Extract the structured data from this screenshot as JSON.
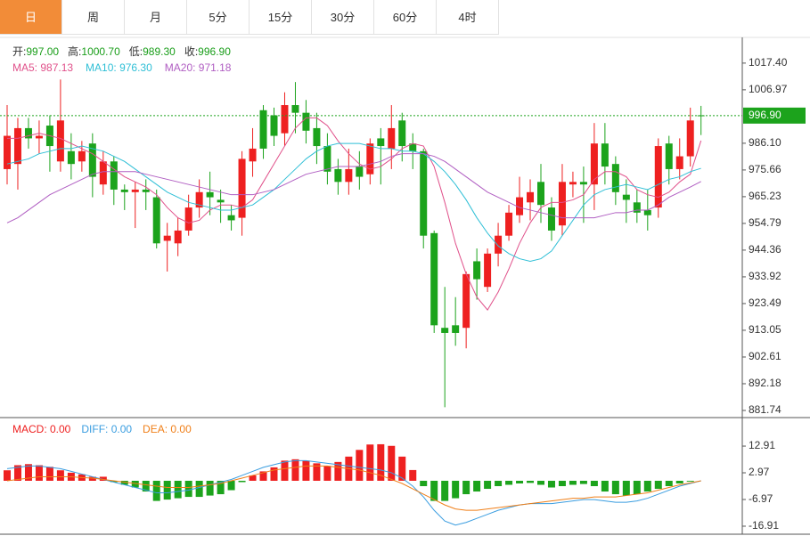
{
  "tabs": [
    "日",
    "周",
    "月",
    "5分",
    "15分",
    "30分",
    "60分",
    "4时"
  ],
  "chart_data": [
    {
      "type": "candlestick",
      "info": [
        {
          "label": "开:",
          "value": "997.00"
        },
        {
          "label": "高:",
          "value": "1000.70"
        },
        {
          "label": "低:",
          "value": "989.30"
        },
        {
          "label": "收:",
          "value": "996.90"
        }
      ],
      "info_value_color": "#1a9e1a",
      "up_color": "#ee2020",
      "down_color": "#1ca31c",
      "open": [
        976,
        978,
        992,
        988,
        993,
        979,
        983,
        979,
        986,
        970,
        979,
        968,
        967,
        968,
        965,
        948,
        947,
        952,
        961,
        967,
        964,
        958,
        957,
        979,
        999,
        997,
        990,
        1001,
        998,
        992,
        985,
        976,
        971,
        977,
        974,
        988,
        984,
        995,
        986,
        983,
        951,
        914,
        915,
        914,
        940,
        930,
        943,
        950,
        958,
        963,
        971,
        961,
        954,
        970,
        971,
        970,
        986,
        978,
        966,
        963,
        960,
        961,
        986,
        976,
        981,
        997.0
      ],
      "high": [
        1001,
        996,
        996,
        995,
        997,
        1011,
        990,
        987,
        990,
        983,
        981,
        970,
        971,
        972,
        968,
        955,
        957,
        966,
        972,
        975,
        968,
        962,
        983,
        992,
        1001,
        1000,
        1006,
        1010,
        1003,
        998,
        990,
        980,
        984,
        983,
        988,
        992,
        1001,
        998,
        990,
        984,
        952,
        930,
        926,
        936,
        945,
        945,
        955,
        962,
        973,
        972,
        978,
        965,
        978,
        975,
        977,
        994,
        994,
        981,
        972,
        968,
        968,
        988,
        989,
        988,
        1000,
        1000.7
      ],
      "low": [
        970,
        968,
        984,
        982,
        975,
        975,
        972,
        975,
        965,
        966,
        962,
        960,
        953,
        960,
        945,
        936,
        942,
        950,
        957,
        958,
        955,
        952,
        950,
        973,
        980,
        985,
        985,
        990,
        986,
        978,
        970,
        966,
        966,
        968,
        970,
        970,
        976,
        979,
        976,
        945,
        912,
        883,
        907,
        906,
        925,
        928,
        938,
        948,
        955,
        956,
        955,
        948,
        950,
        965,
        955,
        960,
        970,
        962,
        955,
        955,
        952,
        957,
        970,
        972,
        977,
        989.3
      ],
      "close": [
        989,
        992,
        988,
        989,
        985,
        995,
        978,
        983,
        973,
        979,
        968,
        967,
        968,
        967,
        947,
        950,
        952,
        961,
        967,
        965,
        963,
        956,
        980,
        984,
        984,
        989,
        1001,
        998,
        991,
        985,
        975,
        971,
        976,
        973,
        986,
        985,
        992,
        985,
        983,
        950,
        915,
        912,
        912,
        935,
        933,
        943,
        950,
        959,
        965,
        967,
        962,
        952,
        971,
        971,
        970,
        986,
        977,
        967,
        964,
        959,
        958,
        985,
        976,
        981,
        995,
        996.9
      ],
      "series": [
        {
          "name": "MA5: 987.13",
          "color": "#e0508a",
          "values": [
            988,
            988,
            989,
            990,
            989,
            988,
            986,
            984,
            982,
            979,
            976,
            973,
            971,
            969,
            966,
            961,
            957,
            955,
            956,
            960,
            962,
            962,
            961,
            964,
            971,
            978,
            985,
            992,
            996,
            996,
            993,
            987,
            982,
            978,
            976,
            977,
            980,
            984,
            986,
            985,
            977,
            963,
            947,
            935,
            926,
            921,
            928,
            937,
            947,
            955,
            961,
            963,
            963,
            964,
            966,
            972,
            975,
            975,
            973,
            968,
            966,
            965,
            967,
            971,
            974,
            987.13
          ]
        },
        {
          "name": "MA10: 976.30",
          "color": "#2fbfd6",
          "values": [
            978,
            979,
            980,
            982,
            983,
            984,
            984,
            985,
            984,
            983,
            981,
            979,
            976,
            973,
            970,
            967,
            965,
            963,
            962,
            961,
            960,
            960,
            961,
            962,
            965,
            968,
            972,
            976,
            980,
            983,
            985,
            986,
            986,
            986,
            985,
            984,
            984,
            983,
            983,
            982,
            979,
            975,
            970,
            964,
            957,
            951,
            946,
            943,
            941,
            940,
            941,
            944,
            950,
            956,
            962,
            966,
            968,
            969,
            970,
            969,
            968,
            970,
            972,
            973,
            975,
            976.3
          ]
        },
        {
          "name": "MA20: 971.18",
          "color": "#b05ec2",
          "values": [
            955,
            957,
            960,
            963,
            966,
            968,
            970,
            972,
            974,
            975,
            975,
            975,
            975,
            974,
            973,
            972,
            971,
            970,
            969,
            968,
            967,
            966,
            966,
            966,
            967,
            968,
            970,
            972,
            974,
            975,
            976,
            977,
            977,
            977,
            978,
            979,
            981,
            982,
            982,
            982,
            981,
            979,
            976,
            973,
            970,
            967,
            965,
            963,
            961,
            960,
            959,
            958,
            957,
            957,
            957,
            957,
            958,
            959,
            959,
            960,
            960,
            962,
            965,
            967,
            969,
            971.18
          ]
        }
      ],
      "ylim": [
        879.3,
        1026.4
      ],
      "yticks": [
        {
          "value": 1017.4,
          "label": "1017.40"
        },
        {
          "value": 1006.97,
          "label": "1006.97"
        },
        {
          "value": 986.1,
          "label": "986.10"
        },
        {
          "value": 975.66,
          "label": "975.66"
        },
        {
          "value": 965.23,
          "label": "965.23"
        },
        {
          "value": 954.79,
          "label": "954.79"
        },
        {
          "value": 944.36,
          "label": "944.36"
        },
        {
          "value": 933.92,
          "label": "933.92"
        },
        {
          "value": 923.49,
          "label": "923.49"
        },
        {
          "value": 913.05,
          "label": "913.05"
        },
        {
          "value": 902.61,
          "label": "902.61"
        },
        {
          "value": 892.18,
          "label": "892.18"
        },
        {
          "value": 881.74,
          "label": "881.74"
        }
      ],
      "last_price": {
        "value": 996.9,
        "label": "996.90",
        "color": "#1ca31c"
      }
    },
    {
      "type": "macd",
      "series": [
        {
          "name": "MACD: 0.00",
          "color": "#ee2020",
          "down_color": "#1ca31c",
          "kind": "bar",
          "values": [
            3.9,
            5.8,
            6.2,
            5.8,
            5.2,
            3.9,
            3,
            2.4,
            1.5,
            1.5,
            -0.5,
            -1.5,
            -2.5,
            -4,
            -7.5,
            -7,
            -6.5,
            -6,
            -6,
            -5.5,
            -5,
            -3.5,
            -0.5,
            2,
            3.5,
            5,
            7.5,
            8,
            7.5,
            6.5,
            5.5,
            7,
            9,
            11.5,
            13.5,
            13.6,
            13,
            9,
            4,
            -2,
            -7.5,
            -7.5,
            -6.5,
            -5,
            -4,
            -3,
            -2,
            -1.5,
            -1,
            -0.8,
            -1.5,
            -2.5,
            -2,
            -1.5,
            -1.2,
            -2,
            -4,
            -5,
            -5.5,
            -5,
            -4,
            -3,
            -2,
            -1,
            -0.3,
            0
          ]
        },
        {
          "name": "DIFF: 0.00",
          "color": "#3a9de0",
          "kind": "line",
          "values": [
            4.5,
            5,
            5.5,
            5.5,
            5,
            4.5,
            3.5,
            2.5,
            1.5,
            0.5,
            -0.5,
            -1.5,
            -2.5,
            -3.5,
            -4.5,
            -4.5,
            -4,
            -3.5,
            -2.5,
            -1.5,
            -0.5,
            0.5,
            2,
            3.5,
            5,
            6,
            7,
            7.5,
            7.5,
            7,
            6.5,
            6,
            5.5,
            5,
            4.5,
            4,
            3,
            1,
            -2,
            -6,
            -11,
            -15,
            -16.5,
            -15.5,
            -14,
            -12.5,
            -11,
            -10,
            -9,
            -8.5,
            -8.5,
            -8.5,
            -8,
            -7.5,
            -7,
            -7,
            -7.5,
            -8,
            -8,
            -7.5,
            -6.5,
            -5,
            -3.5,
            -2,
            -1,
            0
          ]
        },
        {
          "name": "DEA: 0.00",
          "color": "#f07f18",
          "kind": "line",
          "values": [
            0,
            0.5,
            1,
            1.5,
            1.5,
            1.5,
            1.5,
            1.2,
            1,
            0.5,
            0,
            -0.5,
            -1,
            -1.5,
            -2,
            -2.5,
            -2.5,
            -2.5,
            -2,
            -1.5,
            -1,
            0,
            1,
            2,
            3,
            4,
            4.5,
            5,
            5.5,
            5.5,
            5.5,
            5,
            4.5,
            4,
            3,
            2,
            0.5,
            -1,
            -3,
            -5,
            -7,
            -9,
            -10.5,
            -11,
            -11,
            -10.5,
            -10,
            -9.5,
            -9,
            -8.5,
            -8,
            -7.5,
            -7,
            -6.5,
            -6.5,
            -6,
            -6,
            -6,
            -5.5,
            -5,
            -4.5,
            -3.5,
            -2.5,
            -1.5,
            -0.8,
            0
          ]
        }
      ],
      "ylim": [
        -19.9,
        23.2
      ],
      "yticks": [
        12.91,
        2.97,
        -6.97,
        -16.91
      ]
    }
  ]
}
